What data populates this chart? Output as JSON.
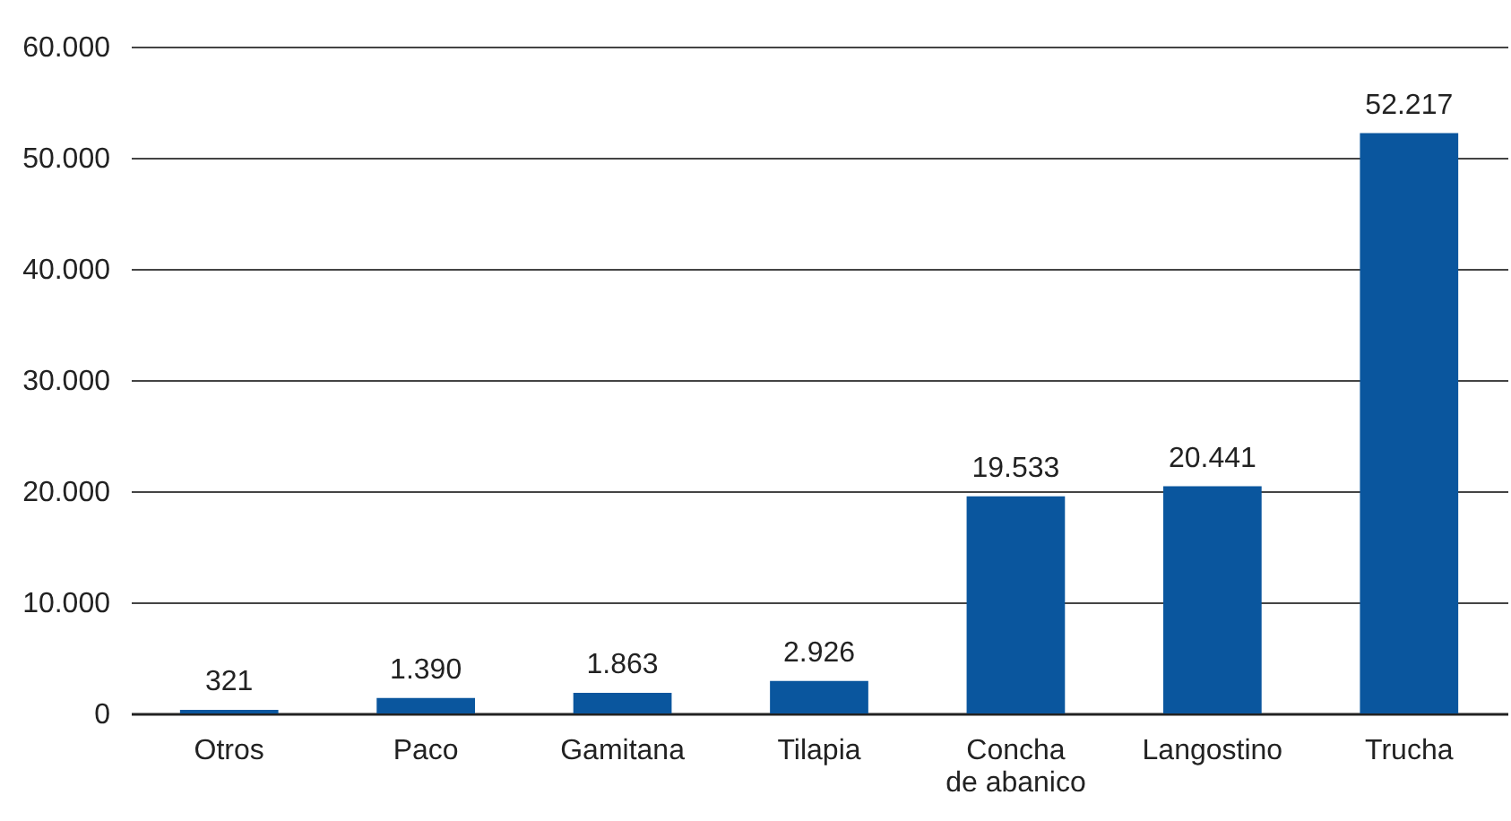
{
  "chart_data": {
    "type": "bar",
    "categories": [
      "Otros",
      "Paco",
      "Gamitana",
      "Tilapia",
      "Concha de abanico",
      "Langostino",
      "Trucha"
    ],
    "values": [
      321,
      1390,
      1863,
      2926,
      19533,
      20441,
      52217
    ],
    "value_labels": [
      "321",
      "1.390",
      "1.863",
      "2.926",
      "19.533",
      "20.441",
      "52.217"
    ],
    "color": "#0a569e",
    "ylim": [
      0,
      60000
    ],
    "yticks": [
      {
        "value": 0,
        "label": "0"
      },
      {
        "value": 10000,
        "label": "10.000"
      },
      {
        "value": 20000,
        "label": "20.000"
      },
      {
        "value": 30000,
        "label": "30.000"
      },
      {
        "value": 40000,
        "label": "40.000"
      },
      {
        "value": 50000,
        "label": "50.000"
      },
      {
        "value": 60000,
        "label": "60.000"
      }
    ],
    "grid": "y"
  }
}
